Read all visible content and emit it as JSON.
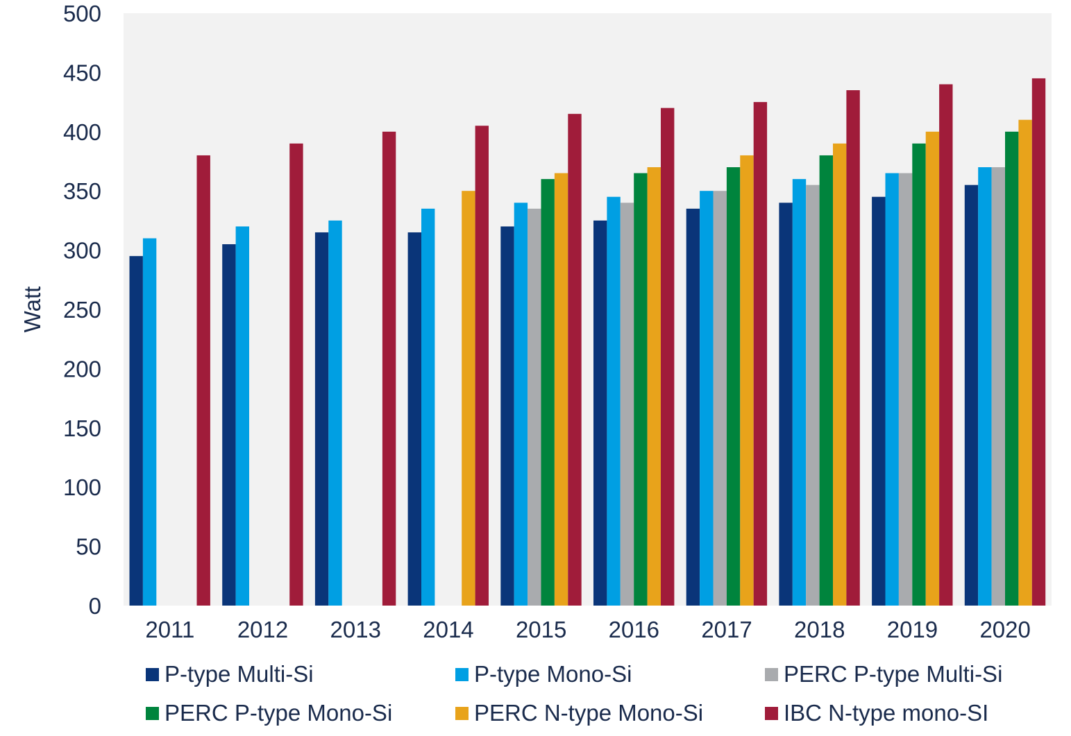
{
  "chart_data": {
    "type": "bar",
    "ylabel": "Watt",
    "ylim": [
      0,
      500
    ],
    "yticks": [
      0,
      50,
      100,
      150,
      200,
      250,
      300,
      350,
      400,
      450,
      500
    ],
    "categories": [
      "2011",
      "2012",
      "2013",
      "2014",
      "2015",
      "2016",
      "2017",
      "2018",
      "2019",
      "2020"
    ],
    "grid": false,
    "legend_position": "bottom",
    "plot_background": "#f2f2f2",
    "series": [
      {
        "name": "P-type Multi-Si",
        "color": "#0a3579",
        "values": [
          295,
          305,
          315,
          315,
          320,
          325,
          335,
          340,
          345,
          355
        ]
      },
      {
        "name": "P-type Mono-Si",
        "color": "#009fe3",
        "values": [
          310,
          320,
          325,
          335,
          340,
          345,
          350,
          360,
          365,
          370
        ]
      },
      {
        "name": "PERC P-type Multi-Si",
        "color": "#a9abae",
        "values": [
          null,
          null,
          null,
          null,
          335,
          340,
          350,
          355,
          365,
          370
        ]
      },
      {
        "name": "PERC P-type Mono-Si",
        "color": "#00843d",
        "values": [
          null,
          null,
          null,
          null,
          360,
          365,
          370,
          380,
          390,
          400
        ]
      },
      {
        "name": "PERC N-type Mono-Si",
        "color": "#e8a31b",
        "values": [
          null,
          null,
          null,
          350,
          365,
          370,
          380,
          390,
          400,
          410
        ]
      },
      {
        "name": "IBC N-type mono-SI",
        "color": "#a01c3a",
        "values": [
          380,
          390,
          400,
          405,
          415,
          420,
          425,
          435,
          440,
          445
        ]
      }
    ]
  }
}
